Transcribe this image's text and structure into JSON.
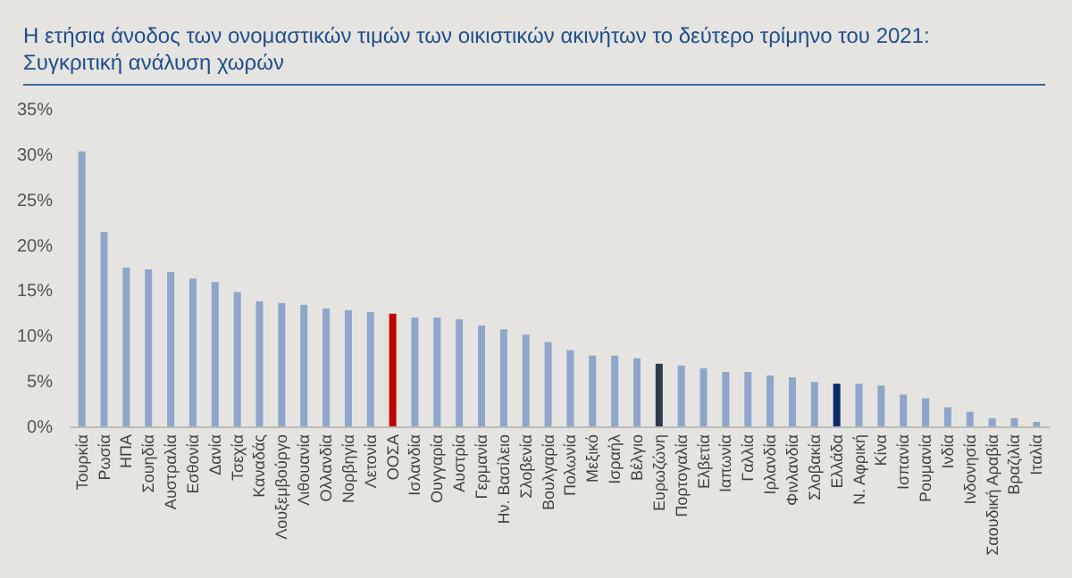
{
  "chart_data": {
    "type": "bar",
    "title": "Η ετήσια άνοδος των ονομαστικών τιμών των οικιστικών ακινήτων το δεύτερο τρίμηνο του 2021: Συγκριτική ανάλυση χωρών",
    "categories": [
      "Τουρκία",
      "Ρωσία",
      "ΗΠΑ",
      "Σουηδία",
      "Αυστραλία",
      "Εσθονία",
      "Δανία",
      "Τσεχία",
      "Καναδάς",
      "Λουξεμβούργο",
      "Λιθουανία",
      "Ολλανδία",
      "Νορβηγία",
      "Λετονία",
      "ΟΟΣΑ",
      "Ισλανδία",
      "Ουγγαρία",
      "Αυστρία",
      "Γερμανία",
      "Ην. Βασίλειο",
      "Σλοβενία",
      "Βουλγαρία",
      "Πολωνία",
      "Μεξικό",
      "Ισραήλ",
      "Βέλγιο",
      "Ευρωζώνη",
      "Πορτογαλία",
      "Ελβετία",
      "Ιαπωνία",
      "Γαλλία",
      "Ιρλανδία",
      "Φινλανδία",
      "Σλοβακία",
      "Ελλάδα",
      "Ν. Αφρική",
      "Κίνα",
      "Ισπανία",
      "Ρουμανία",
      "Ινδία",
      "Ινδονησία",
      "Σαουδική Αραβία",
      "Βραζιλία",
      "Ιταλία"
    ],
    "values": [
      30.3,
      21.4,
      17.5,
      17.3,
      17.0,
      16.3,
      15.9,
      14.8,
      13.8,
      13.6,
      13.4,
      13.0,
      12.8,
      12.6,
      12.4,
      12.0,
      12.0,
      11.8,
      11.1,
      10.7,
      10.1,
      9.3,
      8.4,
      7.8,
      7.8,
      7.5,
      6.9,
      6.7,
      6.4,
      6.0,
      6.0,
      5.6,
      5.4,
      4.9,
      4.7,
      4.7,
      4.5,
      3.5,
      3.1,
      2.1,
      1.6,
      0.9,
      0.9,
      0.5
    ],
    "colors": [
      "#8ea6c9",
      "#8ea6c9",
      "#8ea6c9",
      "#8ea6c9",
      "#8ea6c9",
      "#8ea6c9",
      "#8ea6c9",
      "#8ea6c9",
      "#8ea6c9",
      "#8ea6c9",
      "#8ea6c9",
      "#8ea6c9",
      "#8ea6c9",
      "#8ea6c9",
      "#c00000",
      "#8ea6c9",
      "#8ea6c9",
      "#8ea6c9",
      "#8ea6c9",
      "#8ea6c9",
      "#8ea6c9",
      "#8ea6c9",
      "#8ea6c9",
      "#8ea6c9",
      "#8ea6c9",
      "#8ea6c9",
      "#2f3b4c",
      "#8ea6c9",
      "#8ea6c9",
      "#8ea6c9",
      "#8ea6c9",
      "#8ea6c9",
      "#8ea6c9",
      "#8ea6c9",
      "#0b2a6b",
      "#8ea6c9",
      "#8ea6c9",
      "#8ea6c9",
      "#8ea6c9",
      "#8ea6c9",
      "#8ea6c9",
      "#8ea6c9",
      "#8ea6c9",
      "#8ea6c9"
    ],
    "ylim": [
      0,
      35
    ],
    "yticks": [
      {
        "value": 0,
        "label": "0%"
      },
      {
        "value": 5,
        "label": "5%"
      },
      {
        "value": 10,
        "label": "10%"
      },
      {
        "value": 15,
        "label": "15%"
      },
      {
        "value": 20,
        "label": "20%"
      },
      {
        "value": 25,
        "label": "25%"
      },
      {
        "value": 30,
        "label": "30%"
      },
      {
        "value": 35,
        "label": "35%"
      }
    ],
    "grid": false
  }
}
